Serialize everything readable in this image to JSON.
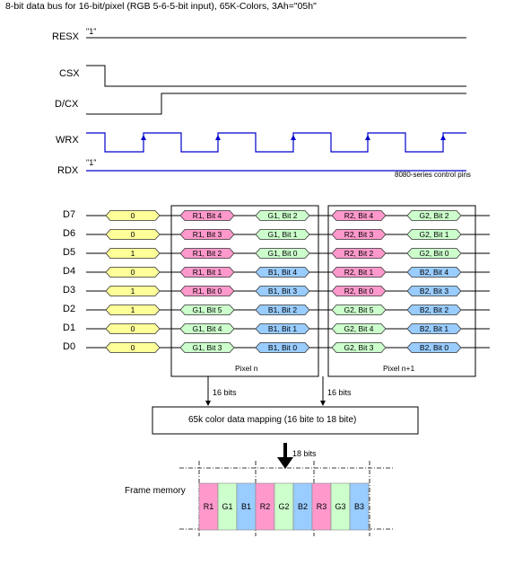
{
  "title": "8-bit data bus for 16-bit/pixel (RGB 5-6-5-bit input), 65K-Colors, 3Ah=\"05h\"",
  "control_signals": {
    "resx": {
      "label": "RESX",
      "value": "\"1\""
    },
    "csx": {
      "label": "CSX"
    },
    "dcx": {
      "label": "D/CX"
    },
    "wrx": {
      "label": "WRX"
    },
    "rdx": {
      "label": "RDX",
      "value": "\"1\""
    }
  },
  "control_note": "8080-series control pins",
  "data_lines": [
    {
      "name": "D7",
      "first": "0",
      "p1": [
        "R1, Bit 4",
        "G1, Bit 2"
      ],
      "p2": [
        "R2, Bit 4",
        "G2, Bit 2"
      ]
    },
    {
      "name": "D6",
      "first": "0",
      "p1": [
        "R1, Bit 3",
        "G1, Bit 1"
      ],
      "p2": [
        "R2, Bit 3",
        "G2, Bit 1"
      ]
    },
    {
      "name": "D5",
      "first": "1",
      "p1": [
        "R1, Bit 2",
        "G1, Bit 0"
      ],
      "p2": [
        "R2, Bit 2",
        "G2, Bit 0"
      ]
    },
    {
      "name": "D4",
      "first": "0",
      "p1": [
        "R1, Bit 1",
        "B1, Bit 4"
      ],
      "p2": [
        "R2, Bit 1",
        "B2, Bit 4"
      ]
    },
    {
      "name": "D3",
      "first": "1",
      "p1": [
        "R1, Bit 0",
        "B1, Bit 3"
      ],
      "p2": [
        "R2, Bit 0",
        "B2, Bit 3"
      ]
    },
    {
      "name": "D2",
      "first": "1",
      "p1": [
        "G1, Bit 5",
        "B1, Bit 2"
      ],
      "p2": [
        "G2, Bit 5",
        "B2, Bit 2"
      ]
    },
    {
      "name": "D1",
      "first": "0",
      "p1": [
        "G1, Bit 4",
        "B1, Bit 1"
      ],
      "p2": [
        "G2, Bit 4",
        "B2, Bit 1"
      ]
    },
    {
      "name": "D0",
      "first": "0",
      "p1": [
        "G1, Bit 3",
        "B1, Bit 0"
      ],
      "p2": [
        "G2, Bit 3",
        "B2, Bit 0"
      ]
    }
  ],
  "pixel_labels": [
    "Pixel n",
    "Pixel n+1"
  ],
  "bits_label_16": "16 bits",
  "mapping_label": "65k color data mapping (16 bite to 18 bite)",
  "bits_label_18": "18 bits",
  "frame_memory": {
    "label": "Frame memory",
    "cells": [
      "R1",
      "G1",
      "B1",
      "R2",
      "G2",
      "B2",
      "R3",
      "G3",
      "B3"
    ]
  },
  "colors": {
    "yellow": "#ffff99",
    "pink": "#ff99cc",
    "green": "#ccffcc",
    "blue": "#99ccff",
    "signal_line": "#0000cc"
  }
}
